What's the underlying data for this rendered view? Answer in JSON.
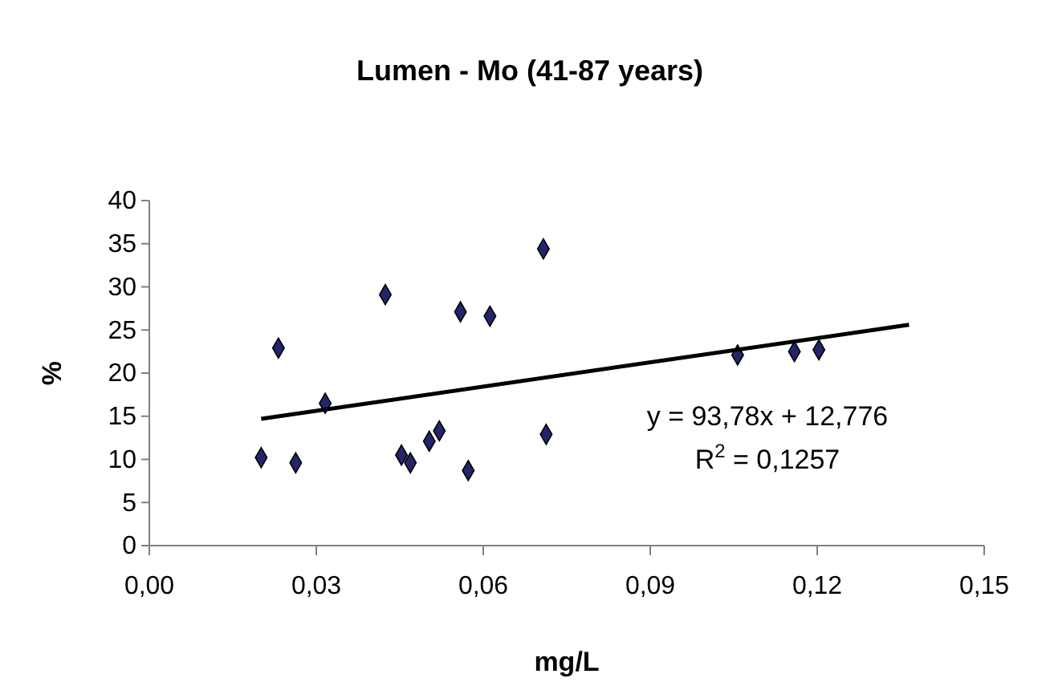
{
  "chart_data": {
    "type": "scatter",
    "title": "Lumen - Mo (41-87 years)",
    "xlabel": "mg/L",
    "ylabel": "%",
    "xlim": [
      0,
      0.15
    ],
    "xticks": [
      {
        "value": 0,
        "label": "0,00"
      },
      {
        "value": 0.03,
        "label": "0,03"
      },
      {
        "value": 0.06,
        "label": "0,06"
      },
      {
        "value": 0.09,
        "label": "0,09"
      },
      {
        "value": 0.12,
        "label": "0,12"
      },
      {
        "value": 0.15,
        "label": "0,15"
      }
    ],
    "ylim": [
      0,
      40
    ],
    "yticks": [
      0,
      5,
      10,
      15,
      20,
      25,
      30,
      35,
      40
    ],
    "grid": false,
    "marker": "diamond",
    "series": [
      {
        "color": "#24246b",
        "x": [
          0.0201,
          0.0232,
          0.0263,
          0.0316,
          0.0424,
          0.0453,
          0.0469,
          0.0503,
          0.0521,
          0.0559,
          0.0573,
          0.0612,
          0.0708,
          0.0713,
          0.1057,
          0.1159,
          0.1203
        ],
        "values": [
          10.2,
          22.9,
          9.6,
          16.5,
          29.1,
          10.5,
          9.6,
          12.1,
          13.3,
          27.1,
          8.7,
          26.6,
          34.4,
          12.9,
          22.1,
          22.5,
          22.7
        ]
      },
      {
        "type": "line",
        "color": "#000000",
        "line_style": "solid",
        "marker": "none",
        "x": [
          0.0201,
          0.1365
        ],
        "values": [
          14.7,
          25.6
        ]
      }
    ],
    "annotations": [
      "y = 93,78x + 12,776",
      "R$^{2}$ = 0,1257"
    ]
  }
}
